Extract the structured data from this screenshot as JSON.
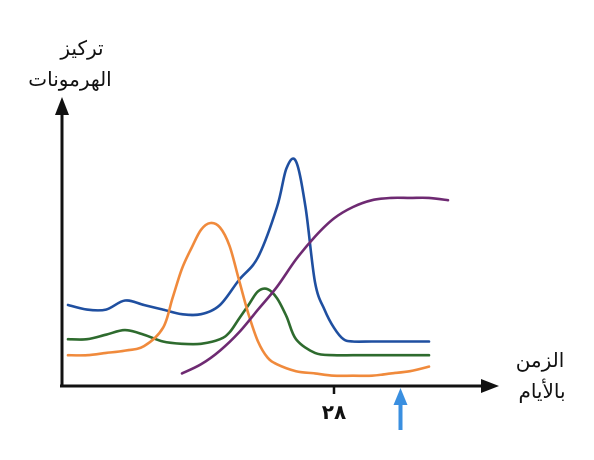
{
  "chart_data": {
    "type": "line",
    "ylabel": [
      "تركيز",
      "الهرمونات"
    ],
    "xlabel": [
      "الزمن",
      "بالأيام"
    ],
    "xticks": [
      {
        "x": 28,
        "label": "٢٨"
      }
    ],
    "marker": {
      "x": 35,
      "color": "#3a8fe0",
      "icon": "up-arrow-icon"
    },
    "xlim": [
      0,
      40
    ],
    "ylim": [
      0,
      10
    ],
    "grid": false,
    "series": [
      {
        "color": "#1f4fa0",
        "x": [
          0,
          2,
          4,
          6,
          8,
          10,
          12,
          14,
          16,
          18,
          20,
          22,
          23,
          24,
          25,
          26,
          27,
          28,
          29,
          30,
          32,
          34,
          36,
          38
        ],
        "y": [
          3.2,
          3.0,
          3.0,
          3.4,
          3.2,
          3.0,
          2.8,
          2.8,
          3.2,
          4.3,
          5.3,
          7.5,
          9.2,
          9.5,
          7.5,
          4.2,
          3.0,
          2.2,
          1.7,
          1.6,
          1.6,
          1.6,
          1.6,
          1.6
        ]
      },
      {
        "color": "#2e6b2e",
        "x": [
          0,
          2,
          4,
          6,
          8,
          10,
          12,
          14,
          16,
          17,
          18,
          19,
          20,
          21,
          22,
          23,
          24,
          26,
          28,
          30,
          32,
          34,
          36,
          38
        ],
        "y": [
          1.7,
          1.7,
          1.9,
          2.1,
          1.9,
          1.6,
          1.5,
          1.5,
          1.7,
          2.0,
          2.6,
          3.2,
          3.8,
          3.9,
          3.5,
          2.7,
          1.7,
          1.1,
          1.0,
          1.0,
          1.0,
          1.0,
          1.0,
          1.0
        ]
      },
      {
        "color": "#f08a3c",
        "x": [
          0,
          2,
          4,
          6,
          8,
          10,
          11,
          12,
          13,
          14,
          15,
          16,
          17,
          18,
          19,
          20,
          21,
          22,
          24,
          26,
          28,
          30,
          32,
          34,
          36,
          38
        ],
        "y": [
          1.0,
          1.0,
          1.1,
          1.2,
          1.4,
          2.2,
          3.5,
          4.8,
          5.7,
          6.5,
          6.8,
          6.6,
          5.8,
          4.3,
          2.8,
          1.6,
          0.9,
          0.6,
          0.3,
          0.2,
          0.1,
          0.1,
          0.1,
          0.2,
          0.3,
          0.5
        ]
      },
      {
        "color": "#6e2a72",
        "x": [
          12,
          14,
          16,
          18,
          20,
          22,
          24,
          26,
          28,
          30,
          32,
          34,
          36,
          38,
          40
        ],
        "y": [
          0.2,
          0.6,
          1.2,
          2.0,
          3.0,
          4.0,
          5.2,
          6.2,
          7.0,
          7.5,
          7.8,
          7.9,
          7.9,
          7.9,
          7.8
        ]
      }
    ]
  }
}
